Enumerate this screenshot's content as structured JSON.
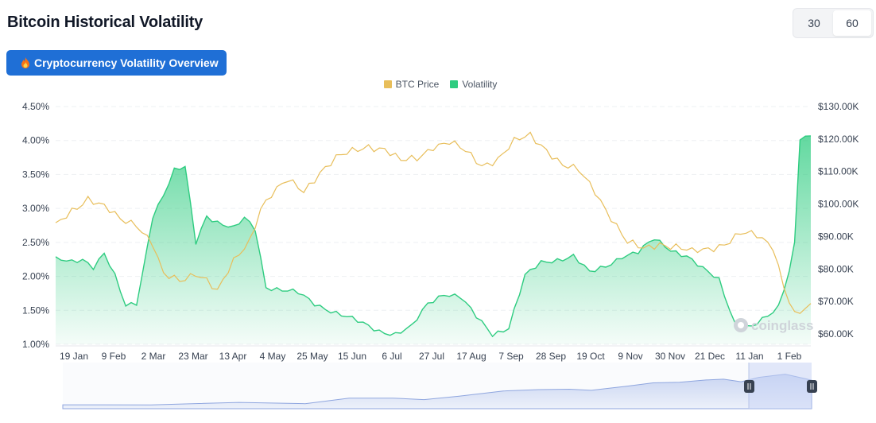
{
  "title": "Bitcoin Historical Volatility",
  "period_options": [
    "30",
    "60"
  ],
  "overview_button": "Cryptocurrency Volatility Overview",
  "watermark": "coinglass",
  "colors": {
    "price": "#e8be5a",
    "volatility": "#2ecc80",
    "accent": "#1f6fd6"
  },
  "chart_data": {
    "type": "line",
    "title": "Bitcoin Historical Volatility",
    "x_ticks": [
      "19 Jan",
      "9 Feb",
      "2 Mar",
      "23 Mar",
      "13 Apr",
      "4 May",
      "25 May",
      "15 Jun",
      "6 Jul",
      "27 Jul",
      "17 Aug",
      "7 Sep",
      "28 Sep",
      "19 Oct",
      "9 Nov",
      "30 Nov",
      "21 Dec",
      "11 Jan",
      "1 Feb"
    ],
    "y_left": {
      "label": "Volatility",
      "ticks": [
        "4.50%",
        "4.00%",
        "3.50%",
        "3.00%",
        "2.50%",
        "2.00%",
        "1.50%",
        "1.00%"
      ],
      "range": [
        1.0,
        4.5
      ]
    },
    "y_right": {
      "label": "BTC Price",
      "ticks": [
        "$130.00K",
        "$120.00K",
        "$110.00K",
        "$100.00K",
        "$90.00K",
        "$80.00K",
        "$70.00K",
        "$60.00K"
      ],
      "range": [
        60,
        130
      ]
    },
    "series": [
      {
        "name": "BTC Price",
        "axis": "right",
        "unit": "K USD",
        "values": [
          [
            0,
            93
          ],
          [
            3,
            98
          ],
          [
            6,
            102
          ],
          [
            9,
            99
          ],
          [
            12,
            95
          ],
          [
            15,
            94
          ],
          [
            18,
            88
          ],
          [
            20,
            78
          ],
          [
            23,
            76
          ],
          [
            26,
            79
          ],
          [
            28,
            77
          ],
          [
            30,
            73
          ],
          [
            33,
            82
          ],
          [
            36,
            89
          ],
          [
            38,
            99
          ],
          [
            40,
            103
          ],
          [
            43,
            107
          ],
          [
            46,
            104
          ],
          [
            49,
            110
          ],
          [
            52,
            114
          ],
          [
            55,
            116
          ],
          [
            58,
            118
          ],
          [
            61,
            117
          ],
          [
            64,
            113
          ],
          [
            67,
            114
          ],
          [
            70,
            118
          ],
          [
            73,
            119
          ],
          [
            76,
            116
          ],
          [
            79,
            112
          ],
          [
            82,
            114
          ],
          [
            85,
            119
          ],
          [
            88,
            121
          ],
          [
            91,
            117
          ],
          [
            94,
            112
          ],
          [
            97,
            110
          ],
          [
            100,
            104
          ],
          [
            103,
            96
          ],
          [
            106,
            88
          ],
          [
            109,
            86
          ],
          [
            112,
            88
          ],
          [
            115,
            87
          ],
          [
            118,
            85
          ],
          [
            121,
            86
          ],
          [
            124,
            88
          ],
          [
            127,
            91
          ],
          [
            130,
            90
          ],
          [
            133,
            87
          ],
          [
            135,
            75
          ],
          [
            137,
            66
          ],
          [
            140,
            68
          ]
        ]
      },
      {
        "name": "Volatility",
        "axis": "left",
        "unit": "%",
        "values": [
          [
            0,
            2.25
          ],
          [
            3,
            2.2
          ],
          [
            5,
            2.25
          ],
          [
            7,
            2.15
          ],
          [
            9,
            2.35
          ],
          [
            11,
            2.0
          ],
          [
            13,
            1.55
          ],
          [
            15,
            1.6
          ],
          [
            16,
            2.0
          ],
          [
            18,
            2.9
          ],
          [
            20,
            3.2
          ],
          [
            22,
            3.55
          ],
          [
            24,
            3.6
          ],
          [
            26,
            2.5
          ],
          [
            28,
            2.9
          ],
          [
            30,
            2.8
          ],
          [
            33,
            2.7
          ],
          [
            35,
            2.85
          ],
          [
            37,
            2.7
          ],
          [
            39,
            1.85
          ],
          [
            42,
            1.8
          ],
          [
            45,
            1.75
          ],
          [
            48,
            1.6
          ],
          [
            51,
            1.5
          ],
          [
            54,
            1.4
          ],
          [
            57,
            1.3
          ],
          [
            60,
            1.2
          ],
          [
            63,
            1.15
          ],
          [
            66,
            1.25
          ],
          [
            69,
            1.6
          ],
          [
            72,
            1.75
          ],
          [
            75,
            1.7
          ],
          [
            78,
            1.4
          ],
          [
            81,
            1.15
          ],
          [
            84,
            1.25
          ],
          [
            87,
            2.0
          ],
          [
            90,
            2.2
          ],
          [
            93,
            2.25
          ],
          [
            96,
            2.3
          ],
          [
            99,
            2.05
          ],
          [
            102,
            2.15
          ],
          [
            105,
            2.3
          ],
          [
            108,
            2.35
          ],
          [
            111,
            2.55
          ],
          [
            114,
            2.4
          ],
          [
            117,
            2.3
          ],
          [
            120,
            2.1
          ],
          [
            123,
            1.95
          ],
          [
            126,
            1.3
          ],
          [
            129,
            1.25
          ],
          [
            132,
            1.4
          ],
          [
            134,
            1.55
          ],
          [
            136,
            2.1
          ],
          [
            137,
            2.5
          ],
          [
            138,
            4.05
          ],
          [
            140,
            4.05
          ]
        ]
      }
    ],
    "legend_position": "top-center",
    "grid": true
  }
}
